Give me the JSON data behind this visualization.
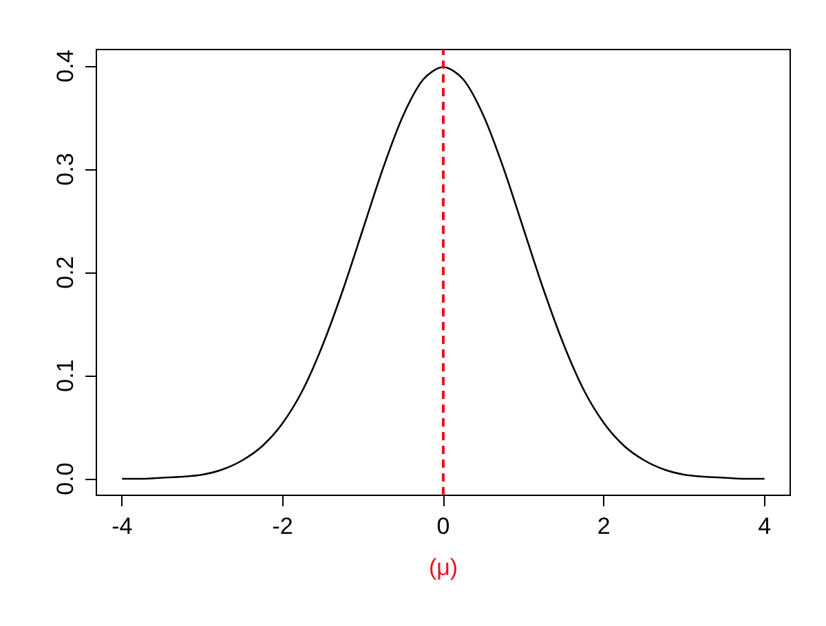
{
  "chart_data": {
    "type": "line",
    "x": [
      -4,
      -3.75,
      -3.5,
      -3.25,
      -3,
      -2.75,
      -2.5,
      -2.25,
      -2,
      -1.75,
      -1.5,
      -1.25,
      -1,
      -0.75,
      -0.5,
      -0.25,
      0,
      0.25,
      0.5,
      0.75,
      1,
      1.25,
      1.5,
      1.75,
      2,
      2.25,
      2.5,
      2.75,
      3,
      3.25,
      3.5,
      3.75,
      4
    ],
    "series": [
      {
        "color": "#000000",
        "values": [
          0.0,
          0.0,
          0.001,
          0.002,
          0.004,
          0.009,
          0.018,
          0.032,
          0.054,
          0.086,
          0.13,
          0.183,
          0.242,
          0.301,
          0.352,
          0.387,
          0.399,
          0.387,
          0.352,
          0.301,
          0.242,
          0.183,
          0.13,
          0.086,
          0.054,
          0.032,
          0.018,
          0.009,
          0.004,
          0.002,
          0.001,
          0.0,
          0.0
        ]
      }
    ],
    "xlim": [
      -4.32,
      4.32
    ],
    "ylim": [
      -0.016,
      0.416
    ],
    "xticks": [
      -4,
      -2,
      0,
      2,
      4
    ],
    "yticks": [
      {
        "value": 0,
        "label": "0.0"
      },
      0.1,
      0.2,
      0.3,
      0.4
    ],
    "ref_lines": [
      {
        "axis": "x",
        "value": 0,
        "label": "(μ)",
        "color": "#e8141e",
        "line_style": "dashed"
      }
    ],
    "grid": false,
    "marker": "none",
    "line_style": "solid"
  }
}
